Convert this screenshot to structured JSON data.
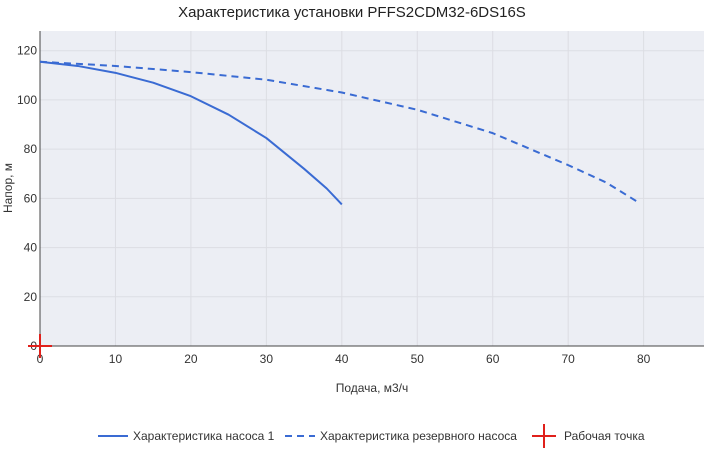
{
  "chart_data": {
    "type": "line",
    "title": "Характеристика установки PFFS2CDM32-6DS16S",
    "xlabel": "Подача, м3/ч",
    "ylabel": "Напор, м",
    "xlim": [
      0,
      88
    ],
    "ylim": [
      0,
      128
    ],
    "x_ticks": [
      0,
      10,
      20,
      30,
      40,
      50,
      60,
      70,
      80
    ],
    "y_ticks": [
      0,
      20,
      40,
      60,
      80,
      100,
      120
    ],
    "grid": true,
    "legend_position": "bottom",
    "series": [
      {
        "name": "Характеристика насоса 1",
        "style": "solid",
        "color": "#3a6bd3",
        "x": [
          0,
          5,
          10,
          15,
          20,
          25,
          30,
          35,
          38,
          40
        ],
        "y": [
          115.5,
          113.8,
          111,
          107,
          101.5,
          94,
          84.5,
          72,
          64,
          57.5
        ]
      },
      {
        "name": "Характеристика резервного насоса",
        "style": "dashed",
        "color": "#3a6bd3",
        "x": [
          0,
          10,
          20,
          30,
          40,
          50,
          60,
          70,
          75,
          79.5
        ],
        "y": [
          115.5,
          113.8,
          111.3,
          108.2,
          103,
          96,
          86.5,
          73.5,
          66.5,
          58
        ]
      },
      {
        "name": "Рабочая точка",
        "style": "marker",
        "color": "#e0201b",
        "x": [
          0
        ],
        "y": [
          0
        ]
      }
    ]
  },
  "colors": {
    "plot_background": "#eceef4",
    "grid": "#dcdde3",
    "line": "#3a6bd3",
    "marker": "#e0201b"
  }
}
